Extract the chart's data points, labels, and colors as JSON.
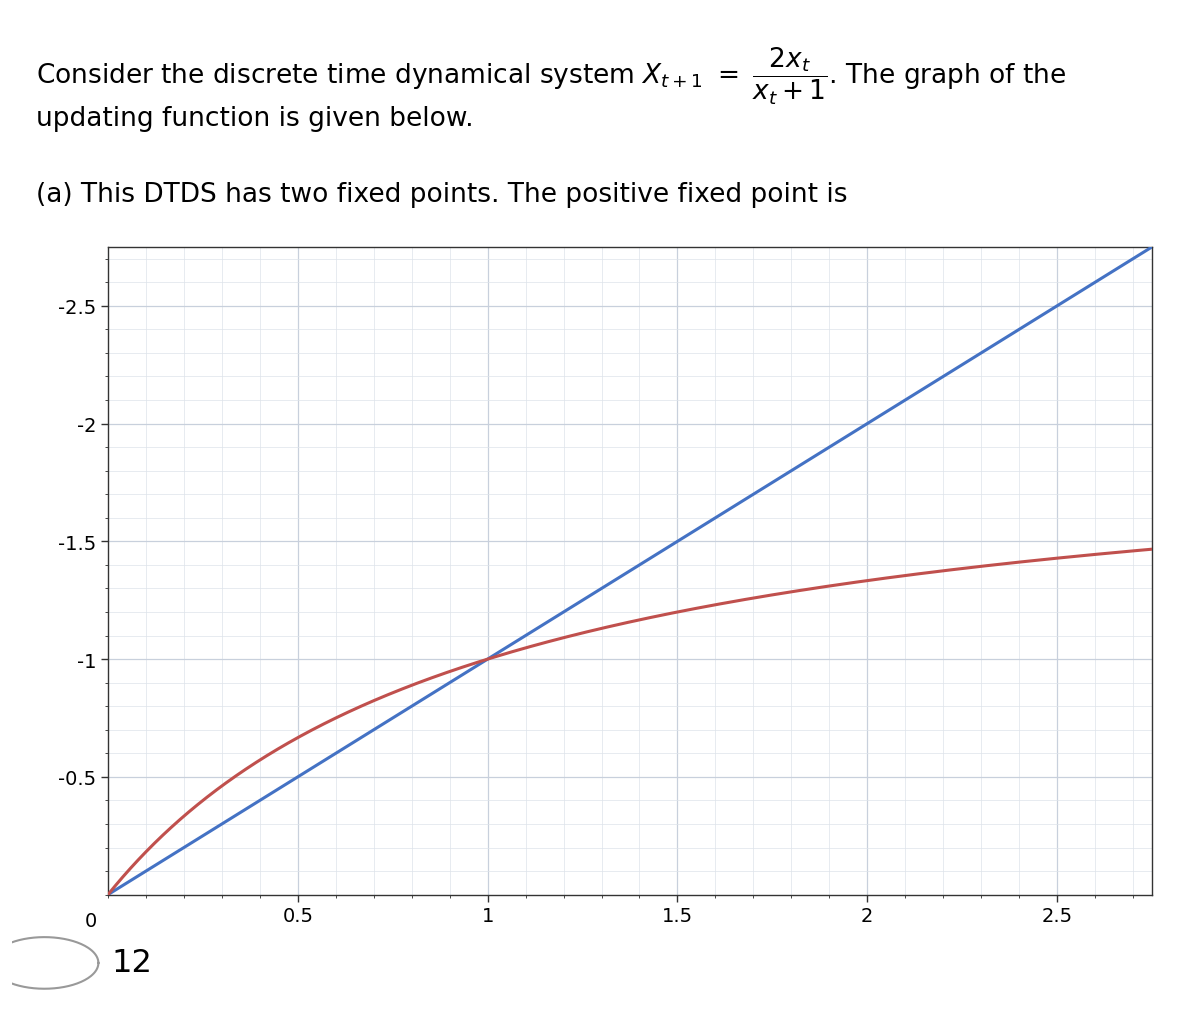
{
  "xmin": 0,
  "xmax": 2.75,
  "ymin": 0,
  "ymax": 2.75,
  "xticks": [
    0.5,
    1,
    1.5,
    2,
    2.5
  ],
  "yticks": [
    0.5,
    1,
    1.5,
    2,
    2.5
  ],
  "ytick_labels": [
    "-0.5",
    "-1",
    "-1.5",
    "-2",
    "-2.5"
  ],
  "line_color": "#4472C4",
  "curve_color": "#C0504D",
  "background_color": "#ffffff",
  "grid_major_color": "#c8d0dc",
  "grid_minor_color": "#dde3ea",
  "answer_text": "12",
  "text_fontsize": 19,
  "tick_fontsize": 14
}
